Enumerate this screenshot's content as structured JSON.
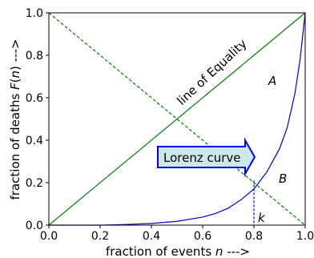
{
  "chart_data": {
    "type": "line",
    "xlabel": "fraction of events n --->",
    "xlabel_parts": {
      "prefix": "fraction of events ",
      "var": "n",
      "suffix": " --->"
    },
    "ylabel": "fraction of deaths F(n) --->",
    "ylabel_parts": {
      "prefix": "fraction of deaths ",
      "var": "F",
      "mid": "(",
      "var2": "n",
      "suffix": ") --->"
    },
    "xlim": [
      0.0,
      1.0
    ],
    "ylim": [
      0.0,
      1.0
    ],
    "x_ticks": [
      "0.0",
      "0.2",
      "0.4",
      "0.6",
      "0.8",
      "1.0"
    ],
    "y_ticks": [
      "0.0",
      "0.2",
      "0.4",
      "0.6",
      "0.8",
      "1.0"
    ],
    "grid": false,
    "series": [
      {
        "name": "line of Equality",
        "color": "#008000",
        "style": "solid",
        "x": [
          0.0,
          1.0
        ],
        "y": [
          0.0,
          1.0
        ]
      },
      {
        "color": "#008000",
        "style": "dashed",
        "x": [
          0.0,
          1.0
        ],
        "y": [
          1.0,
          0.0
        ]
      },
      {
        "name": "Lorenz curve",
        "color": "#0000cd",
        "style": "solid",
        "x": [
          0.0,
          0.2,
          0.3,
          0.4,
          0.5,
          0.6,
          0.65,
          0.7,
          0.75,
          0.8,
          0.85,
          0.9,
          0.93,
          0.96,
          0.98,
          1.0
        ],
        "y": [
          0.0,
          0.0,
          0.003,
          0.008,
          0.018,
          0.038,
          0.055,
          0.08,
          0.12,
          0.17,
          0.25,
          0.36,
          0.46,
          0.62,
          0.78,
          1.0
        ]
      }
    ],
    "k_marker": {
      "x": 0.8,
      "y": 0.21,
      "color": "#0000cd",
      "style": "dashed"
    },
    "annotations": {
      "equality_label": "line of Equality",
      "lorenz_label": "Lorenz curve",
      "region_a": "A",
      "region_b": "B",
      "k_label": "k"
    },
    "colors": {
      "lorenz_box_fill": "#cce8e8",
      "lorenz_box_stroke": "#0000ff"
    }
  }
}
